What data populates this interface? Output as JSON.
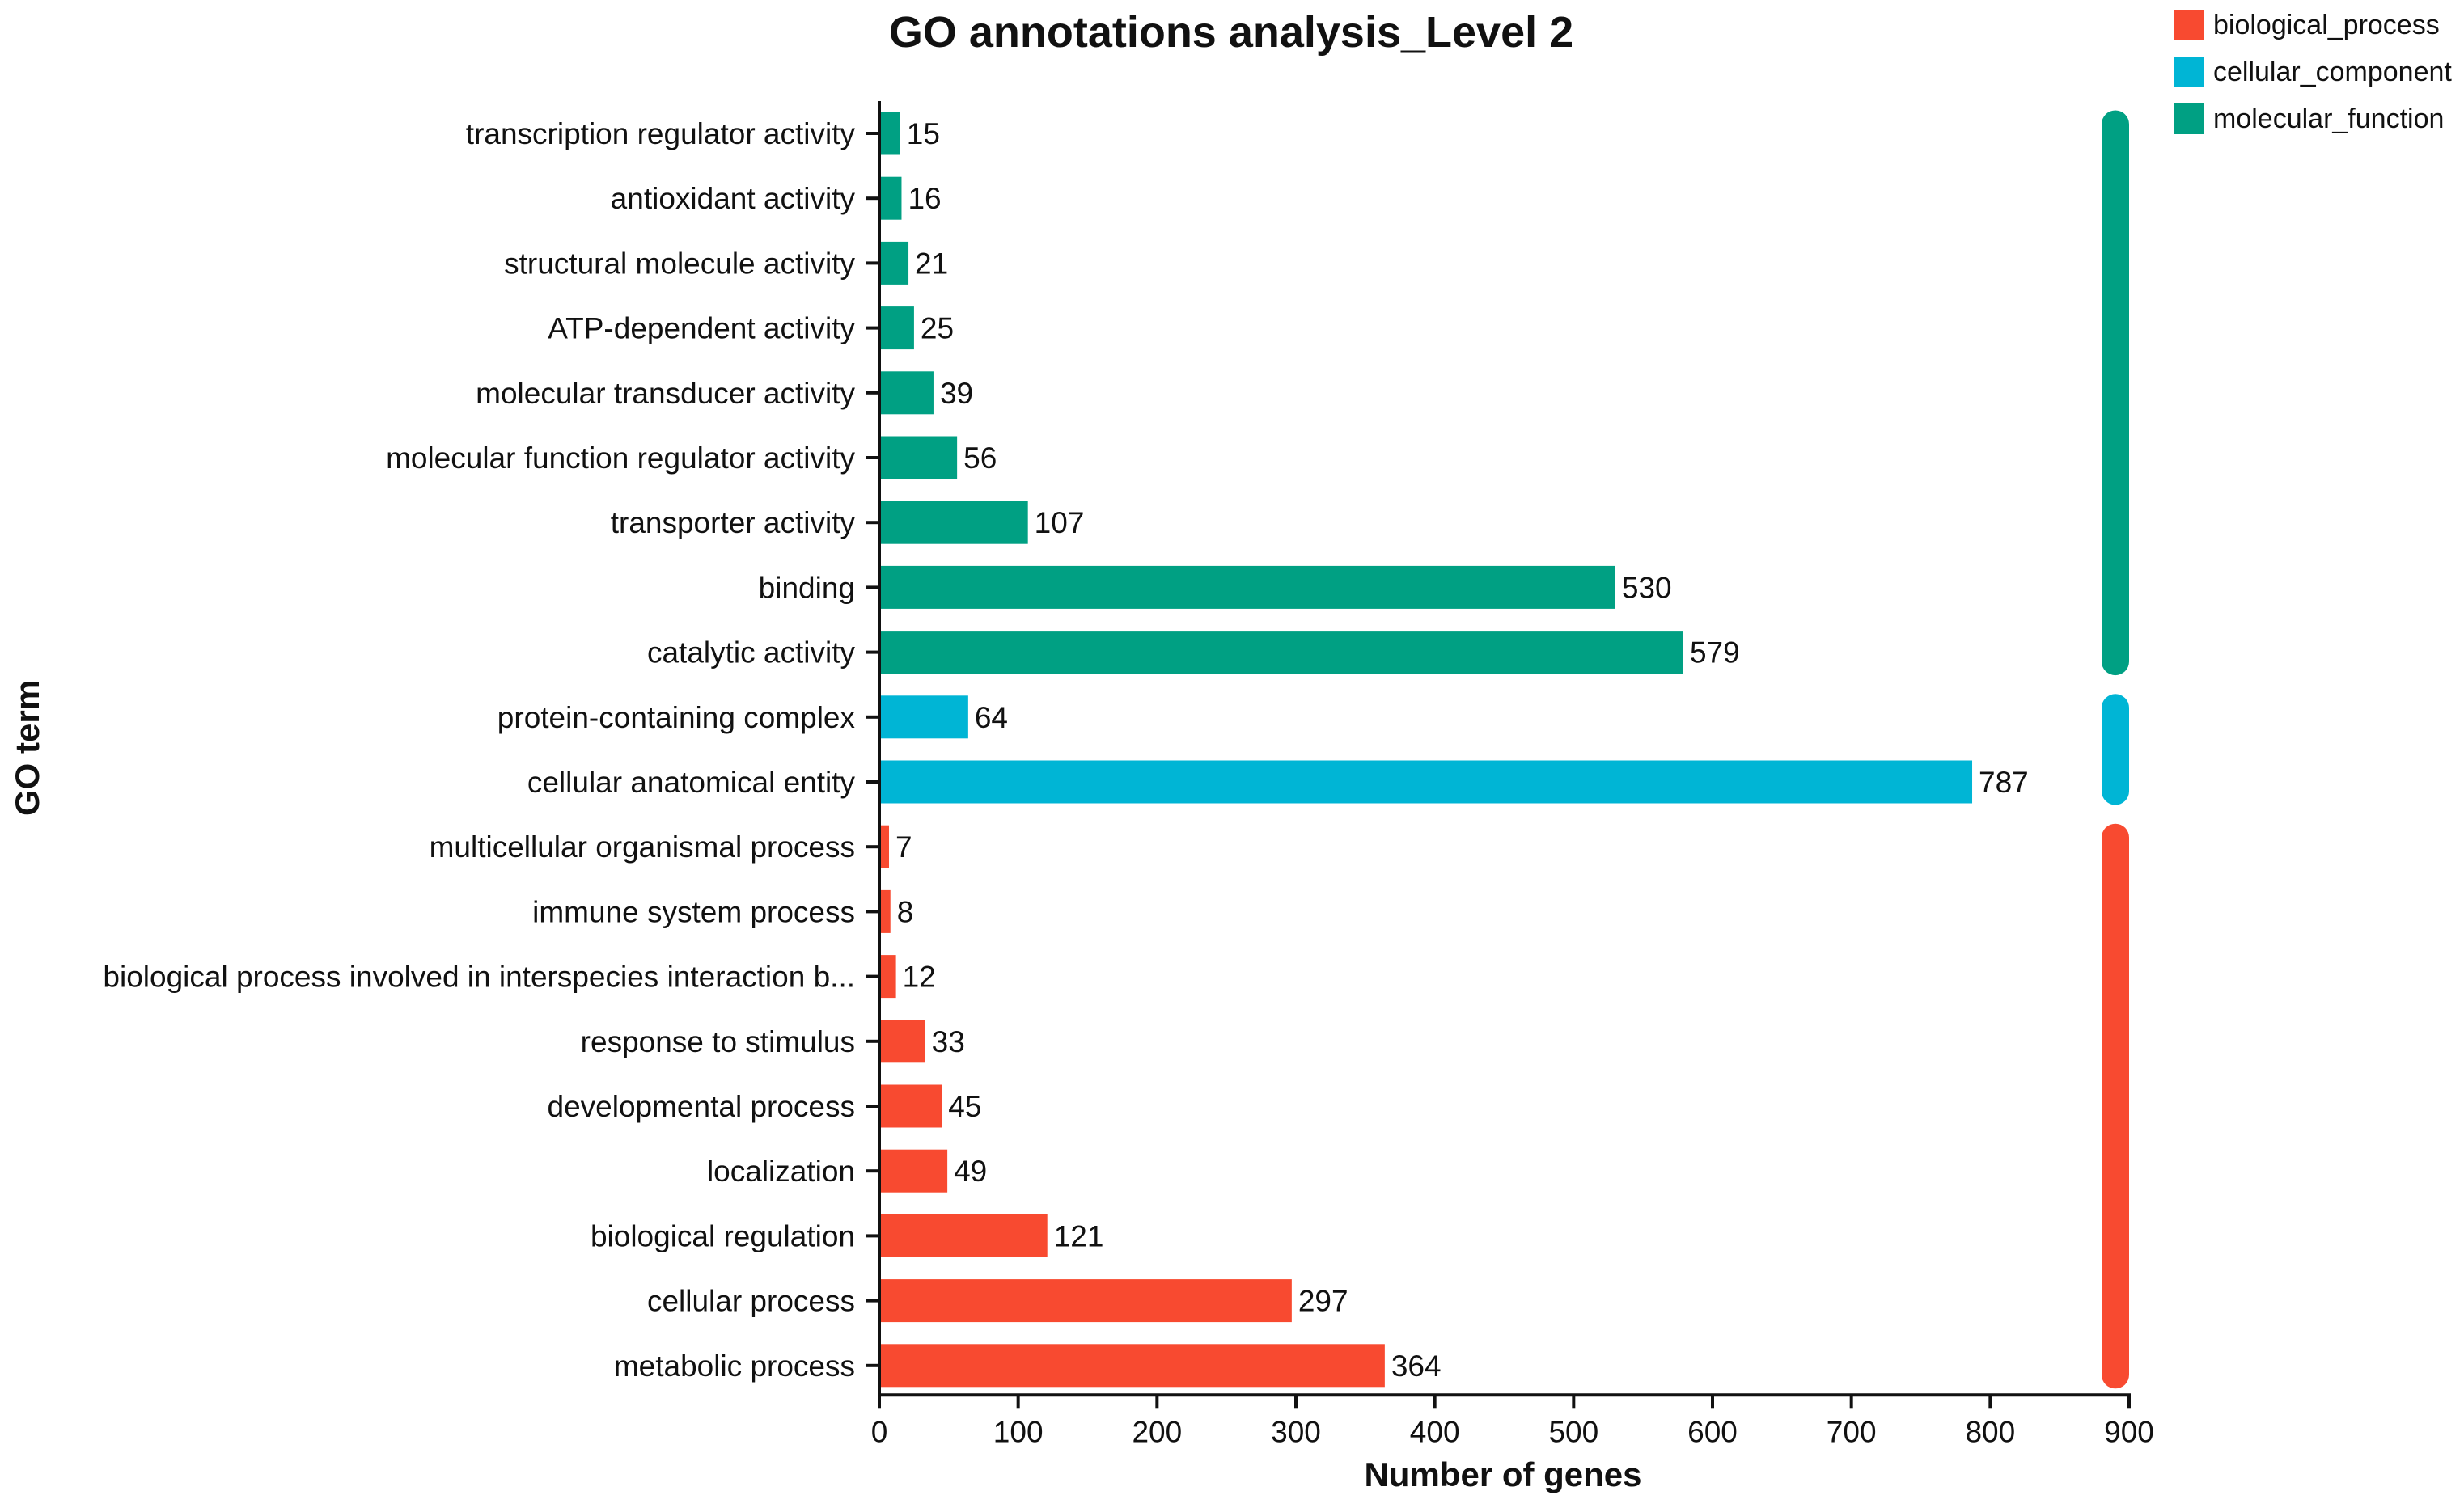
{
  "chart_data": {
    "type": "bar",
    "orientation": "horizontal",
    "title": "GO annotations analysis_Level 2",
    "xlabel": "Number of genes",
    "ylabel": "GO term",
    "xlim": [
      0,
      900
    ],
    "xticks": [
      0,
      100,
      200,
      300,
      400,
      500,
      600,
      700,
      800,
      900
    ],
    "grid": false,
    "legend_position": "top-right",
    "colors": {
      "biological_process": "#f84a30",
      "cellular_component": "#00b5d5",
      "molecular_function": "#00a083"
    },
    "legend": [
      {
        "key": "biological_process",
        "label": "biological_process"
      },
      {
        "key": "cellular_component",
        "label": "cellular_component"
      },
      {
        "key": "molecular_function",
        "label": "molecular_function"
      }
    ],
    "categories": [
      {
        "label": "transcription regulator activity",
        "value": 15,
        "group": "molecular_function"
      },
      {
        "label": "antioxidant activity",
        "value": 16,
        "group": "molecular_function"
      },
      {
        "label": "structural molecule activity",
        "value": 21,
        "group": "molecular_function"
      },
      {
        "label": "ATP-dependent activity",
        "value": 25,
        "group": "molecular_function"
      },
      {
        "label": "molecular transducer activity",
        "value": 39,
        "group": "molecular_function"
      },
      {
        "label": "molecular function regulator activity",
        "value": 56,
        "group": "molecular_function"
      },
      {
        "label": "transporter activity",
        "value": 107,
        "group": "molecular_function"
      },
      {
        "label": "binding",
        "value": 530,
        "group": "molecular_function"
      },
      {
        "label": "catalytic activity",
        "value": 579,
        "group": "molecular_function"
      },
      {
        "label": "protein-containing complex",
        "value": 64,
        "group": "cellular_component"
      },
      {
        "label": "cellular anatomical entity",
        "value": 787,
        "group": "cellular_component"
      },
      {
        "label": "multicellular organismal process",
        "value": 7,
        "group": "biological_process"
      },
      {
        "label": "immune system process",
        "value": 8,
        "group": "biological_process"
      },
      {
        "label": "biological process involved in interspecies interaction b...",
        "value": 12,
        "group": "biological_process"
      },
      {
        "label": "response to stimulus",
        "value": 33,
        "group": "biological_process"
      },
      {
        "label": "developmental process",
        "value": 45,
        "group": "biological_process"
      },
      {
        "label": "localization",
        "value": 49,
        "group": "biological_process"
      },
      {
        "label": "biological regulation",
        "value": 121,
        "group": "biological_process"
      },
      {
        "label": "cellular process",
        "value": 297,
        "group": "biological_process"
      },
      {
        "label": "metabolic process",
        "value": 364,
        "group": "biological_process"
      }
    ]
  }
}
